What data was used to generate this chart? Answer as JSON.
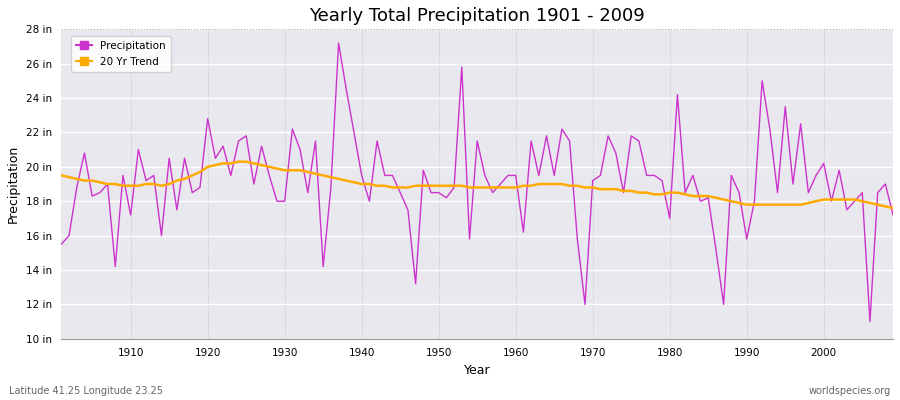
{
  "title": "Yearly Total Precipitation 1901 - 2009",
  "xlabel": "Year",
  "ylabel": "Precipitation",
  "bottom_left_label": "Latitude 41.25 Longitude 23.25",
  "bottom_right_label": "worldspecies.org",
  "precip_color": "#cc33cc",
  "trend_color": "#ffaa00",
  "bg_color": "#e8e8ee",
  "fig_color": "#ffffff",
  "ylim": [
    10,
    28
  ],
  "xlim": [
    1901,
    2009
  ],
  "yticks": [
    10,
    12,
    14,
    16,
    18,
    20,
    22,
    24,
    26,
    28
  ],
  "xticks": [
    1910,
    1920,
    1930,
    1940,
    1950,
    1960,
    1970,
    1980,
    1990,
    2000
  ],
  "years": [
    1901,
    1902,
    1903,
    1904,
    1905,
    1906,
    1907,
    1908,
    1909,
    1910,
    1911,
    1912,
    1913,
    1914,
    1915,
    1916,
    1917,
    1918,
    1919,
    1920,
    1921,
    1922,
    1923,
    1924,
    1925,
    1926,
    1927,
    1928,
    1929,
    1930,
    1931,
    1932,
    1933,
    1934,
    1935,
    1936,
    1937,
    1938,
    1939,
    1940,
    1941,
    1942,
    1943,
    1944,
    1945,
    1946,
    1947,
    1948,
    1949,
    1950,
    1951,
    1952,
    1953,
    1954,
    1955,
    1956,
    1957,
    1958,
    1959,
    1960,
    1961,
    1962,
    1963,
    1964,
    1965,
    1966,
    1967,
    1968,
    1969,
    1970,
    1971,
    1972,
    1973,
    1974,
    1975,
    1976,
    1977,
    1978,
    1979,
    1980,
    1981,
    1982,
    1983,
    1984,
    1985,
    1986,
    1987,
    1988,
    1989,
    1990,
    1991,
    1992,
    1993,
    1994,
    1995,
    1996,
    1997,
    1998,
    1999,
    2000,
    2001,
    2002,
    2003,
    2004,
    2005,
    2006,
    2007,
    2008,
    2009
  ],
  "precip": [
    15.5,
    16.0,
    18.8,
    20.8,
    18.3,
    18.5,
    19.0,
    14.2,
    19.5,
    17.2,
    21.0,
    19.2,
    19.5,
    16.0,
    20.5,
    17.5,
    20.5,
    18.5,
    18.8,
    22.8,
    20.5,
    21.2,
    19.5,
    21.5,
    21.8,
    19.0,
    21.2,
    19.5,
    18.0,
    18.0,
    22.2,
    21.0,
    18.5,
    21.5,
    14.2,
    18.8,
    27.2,
    24.5,
    22.0,
    19.5,
    18.0,
    21.5,
    19.5,
    19.5,
    18.5,
    17.5,
    13.2,
    19.8,
    18.5,
    18.5,
    18.2,
    18.8,
    25.8,
    15.8,
    21.5,
    19.5,
    18.5,
    19.0,
    19.5,
    19.5,
    16.2,
    21.5,
    19.5,
    21.8,
    19.5,
    22.2,
    21.5,
    15.8,
    12.0,
    19.2,
    19.5,
    21.8,
    20.8,
    18.5,
    21.8,
    21.5,
    19.5,
    19.5,
    19.2,
    17.0,
    24.2,
    18.5,
    19.5,
    18.0,
    18.2,
    15.2,
    12.0,
    19.5,
    18.5,
    15.8,
    18.0,
    25.0,
    22.2,
    18.5,
    23.5,
    19.0,
    22.5,
    18.5,
    19.5,
    20.2,
    18.0,
    19.8,
    17.5,
    18.0,
    18.5,
    11.0,
    18.5,
    19.0,
    17.2
  ],
  "trend": [
    19.5,
    19.4,
    19.3,
    19.2,
    19.2,
    19.1,
    19.0,
    19.0,
    18.9,
    18.9,
    18.9,
    19.0,
    19.0,
    18.9,
    19.0,
    19.2,
    19.3,
    19.5,
    19.7,
    20.0,
    20.1,
    20.2,
    20.2,
    20.3,
    20.3,
    20.2,
    20.1,
    20.0,
    19.9,
    19.8,
    19.8,
    19.8,
    19.7,
    19.6,
    19.5,
    19.4,
    19.3,
    19.2,
    19.1,
    19.0,
    19.0,
    18.9,
    18.9,
    18.8,
    18.8,
    18.8,
    18.9,
    18.9,
    18.9,
    18.9,
    18.9,
    18.9,
    18.9,
    18.8,
    18.8,
    18.8,
    18.8,
    18.8,
    18.8,
    18.8,
    18.9,
    18.9,
    19.0,
    19.0,
    19.0,
    19.0,
    18.9,
    18.9,
    18.8,
    18.8,
    18.7,
    18.7,
    18.7,
    18.6,
    18.6,
    18.5,
    18.5,
    18.4,
    18.4,
    18.5,
    18.5,
    18.4,
    18.3,
    18.3,
    18.3,
    18.2,
    18.1,
    18.0,
    17.9,
    17.8,
    17.8,
    17.8,
    17.8,
    17.8,
    17.8,
    17.8,
    17.8,
    17.9,
    18.0,
    18.1,
    18.1,
    18.1,
    18.1,
    18.1,
    18.0,
    17.9,
    17.8,
    17.7,
    17.6
  ]
}
